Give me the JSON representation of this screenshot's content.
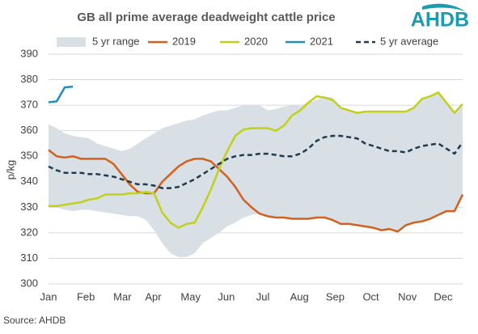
{
  "chart_data": {
    "type": "line",
    "title": "GB all prime average deadweight cattle price",
    "logo": "AHDB",
    "source": "Source: AHDB",
    "ylabel": "p/kg",
    "x": [
      1,
      2,
      3,
      4,
      5,
      6,
      7,
      8,
      9,
      10,
      11,
      12,
      13,
      14,
      15,
      16,
      17,
      18,
      19,
      20,
      21,
      22,
      23,
      24,
      25,
      26,
      27,
      28,
      29,
      30,
      31,
      32,
      33,
      34,
      35,
      36,
      37,
      38,
      39,
      40,
      41,
      42,
      43,
      44,
      45,
      46,
      47,
      48,
      49,
      50,
      51,
      52
    ],
    "xlim": [
      1,
      52
    ],
    "xticks": [
      {
        "value": 1,
        "label": "Jan"
      },
      {
        "value": 5.6,
        "label": "Feb"
      },
      {
        "value": 10.1,
        "label": "Mar"
      },
      {
        "value": 13.9,
        "label": "Apr"
      },
      {
        "value": 18.5,
        "label": "May"
      },
      {
        "value": 22.9,
        "label": "Jun"
      },
      {
        "value": 27.4,
        "label": "Jul"
      },
      {
        "value": 31.9,
        "label": "Aug"
      },
      {
        "value": 36.3,
        "label": "Sep"
      },
      {
        "value": 40.7,
        "label": "Oct"
      },
      {
        "value": 45.2,
        "label": "Nov"
      },
      {
        "value": 49.6,
        "label": "Dec"
      }
    ],
    "ylim": [
      300,
      390
    ],
    "yticks": [
      300,
      310,
      320,
      330,
      340,
      350,
      360,
      370,
      380,
      390
    ],
    "grid": true,
    "legend": "top",
    "series": [
      {
        "name": "5 yr range",
        "color": "#d8e0e5",
        "low": [
          330.5,
          330,
          329,
          328.5,
          329,
          329,
          328.5,
          328,
          327.5,
          327,
          326.5,
          326.5,
          325,
          321,
          316,
          312,
          310.5,
          310.5,
          312,
          316,
          318,
          320,
          322.5,
          324,
          326,
          327,
          327.5,
          326.5,
          326,
          326,
          325.5,
          325.5,
          325.5,
          326,
          326,
          325,
          323.5,
          323.5,
          323,
          322.5,
          322,
          321,
          321.5,
          320.5,
          323,
          324,
          324.5,
          325.5,
          327,
          328.5,
          328.5,
          335
        ],
        "high": [
          362.5,
          361,
          359,
          358,
          357.5,
          357,
          355,
          354,
          353,
          352,
          353,
          355,
          357,
          359,
          361,
          362,
          363,
          364,
          364.5,
          366,
          367,
          368,
          368,
          369,
          370,
          370,
          370,
          368,
          368.5,
          369.5,
          370,
          370,
          371,
          372,
          373.5,
          373,
          369,
          368,
          367,
          367.5,
          367.5,
          367.5,
          367.5,
          367.5,
          367.5,
          369,
          372.5,
          373.5,
          375,
          371,
          367,
          370.5
        ]
      },
      {
        "name": "2019",
        "color": "#d4601f",
        "values": [
          352.5,
          350,
          349.5,
          350,
          349,
          349,
          349,
          349,
          347,
          343,
          339,
          336,
          335.5,
          335.5,
          340,
          343,
          346,
          348,
          349,
          349,
          348,
          345,
          342,
          338,
          333,
          330,
          327.5,
          326.5,
          326,
          326,
          325.5,
          325.5,
          325.5,
          326,
          326,
          325,
          323.5,
          323.5,
          323,
          322.5,
          322,
          321,
          321.5,
          320.5,
          323,
          324,
          324.5,
          325.5,
          327,
          328.5,
          328.5,
          335
        ]
      },
      {
        "name": "2020",
        "color": "#c4cf1a",
        "values": [
          330.5,
          330.5,
          331,
          331.5,
          332,
          333,
          333.5,
          335,
          335,
          335,
          335.5,
          335.5,
          336,
          335.5,
          328,
          324,
          322,
          323.5,
          324,
          330,
          337,
          345,
          352,
          358,
          360.5,
          361,
          361,
          361,
          360,
          362,
          366,
          368,
          371,
          373.5,
          373,
          372,
          369,
          368,
          367,
          367.5,
          367.5,
          367.5,
          367.5,
          367.5,
          367.5,
          369,
          372.5,
          373.5,
          375,
          371,
          367,
          370.5
        ]
      },
      {
        "name": "2021",
        "color": "#1f8fc1",
        "values": [
          371.2,
          371.5,
          377,
          377.3,
          null,
          null,
          null,
          null,
          null,
          null,
          null,
          null,
          null,
          null,
          null,
          null,
          null,
          null,
          null,
          null,
          null,
          null,
          null,
          null,
          null,
          null,
          null,
          null,
          null,
          null,
          null,
          null,
          null,
          null,
          null,
          null,
          null,
          null,
          null,
          null,
          null,
          null,
          null,
          null,
          null,
          null,
          null,
          null,
          null,
          null,
          null,
          null
        ]
      },
      {
        "name": "5 yr average",
        "color": "#1f3b4d",
        "dashed": true,
        "values": [
          346,
          344.5,
          343.5,
          343.5,
          343.5,
          343,
          343,
          342.5,
          342,
          341,
          340,
          339,
          339,
          338.5,
          337.5,
          337.5,
          338,
          339.5,
          341,
          343,
          345,
          347,
          349,
          350,
          350.5,
          350.5,
          351,
          351,
          350.5,
          350,
          350,
          351,
          353,
          356,
          357.5,
          358,
          358,
          357.5,
          357,
          355,
          354,
          353,
          352,
          352,
          351.5,
          353,
          354,
          354.5,
          355,
          353,
          351,
          355.5
        ]
      }
    ]
  }
}
